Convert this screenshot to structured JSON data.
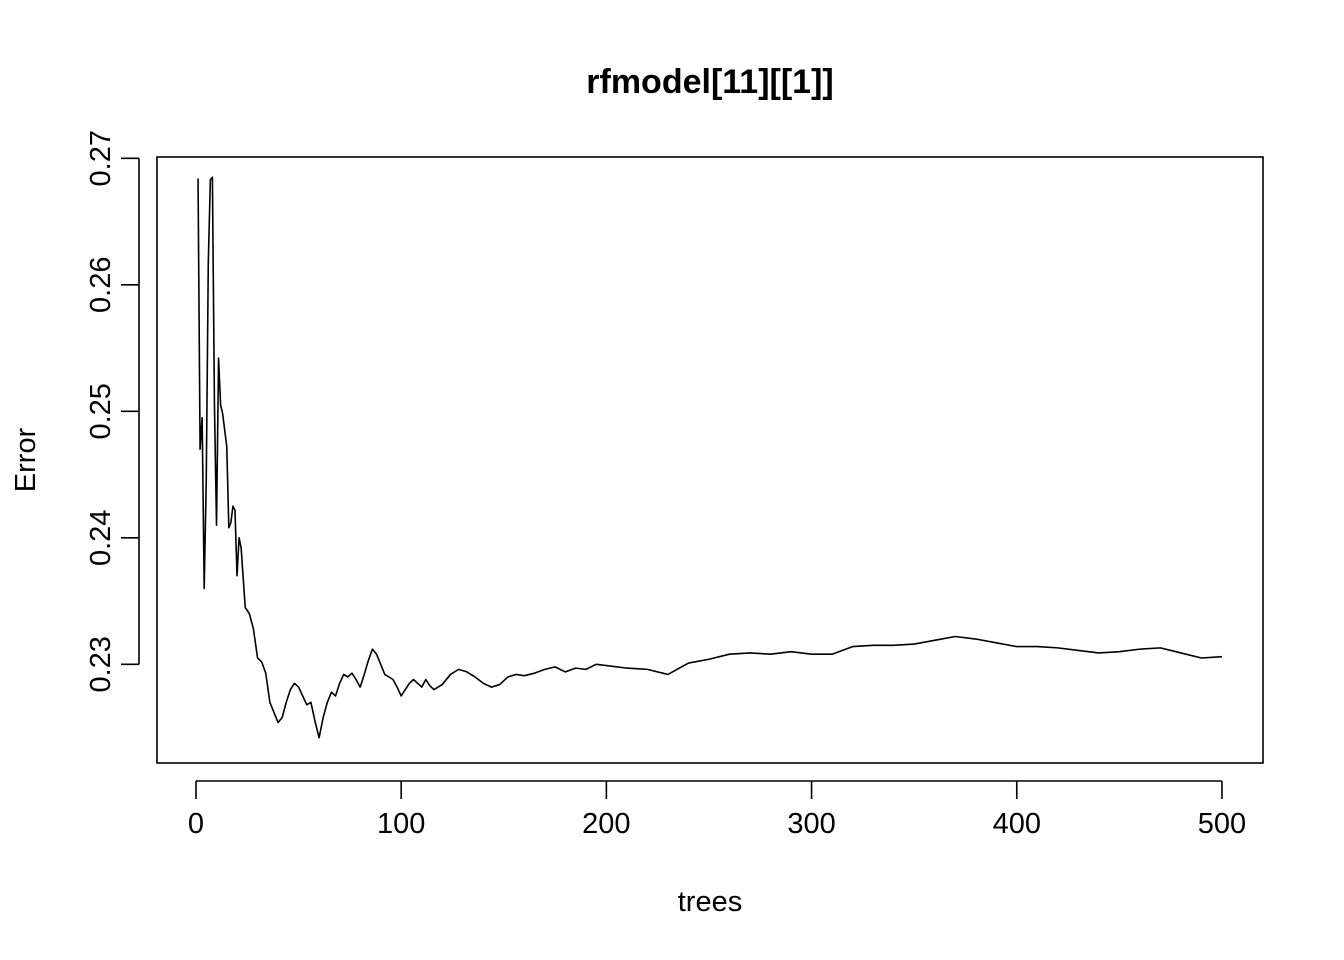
{
  "chart_data": {
    "type": "line",
    "title": "rfmodel[11][[1]]",
    "xlabel": "trees",
    "ylabel": "Error",
    "xlim": [
      -19,
      520
    ],
    "ylim": [
      0.2222,
      0.2701
    ],
    "x_ticks": [
      0,
      100,
      200,
      300,
      400,
      500
    ],
    "x_tick_labels": [
      "0",
      "100",
      "200",
      "300",
      "400",
      "500"
    ],
    "y_ticks": [
      0.23,
      0.24,
      0.25,
      0.26,
      0.27
    ],
    "y_tick_labels": [
      "0.23",
      "0.24",
      "0.25",
      "0.26",
      "0.27"
    ],
    "grid": false,
    "legend": "none",
    "line_color": "#000000",
    "series": [
      {
        "x": [
          1,
          2,
          3,
          4,
          5,
          6,
          7,
          8,
          9,
          10,
          11,
          12,
          13,
          14,
          15,
          16,
          17,
          18,
          19,
          20,
          21,
          22,
          24,
          26,
          28,
          30,
          32,
          34,
          36,
          38,
          40,
          42,
          44,
          46,
          48,
          50,
          52,
          54,
          56,
          58,
          60,
          62,
          64,
          66,
          68,
          70,
          72,
          74,
          76,
          78,
          80,
          82,
          84,
          86,
          88,
          90,
          92,
          94,
          96,
          98,
          100,
          102,
          104,
          106,
          108,
          110,
          112,
          114,
          116,
          118,
          120,
          124,
          128,
          132,
          136,
          140,
          144,
          148,
          152,
          156,
          160,
          165,
          170,
          175,
          180,
          185,
          190,
          195,
          200,
          210,
          220,
          230,
          240,
          250,
          260,
          270,
          280,
          290,
          300,
          310,
          320,
          330,
          340,
          350,
          360,
          370,
          380,
          390,
          400,
          410,
          420,
          430,
          440,
          450,
          460,
          470,
          480,
          490,
          500
        ],
        "y": [
          0.2684,
          0.247,
          0.2495,
          0.236,
          0.2445,
          0.2618,
          0.2683,
          0.2685,
          0.2505,
          0.241,
          0.2542,
          0.2505,
          0.2498,
          0.2485,
          0.2472,
          0.2408,
          0.2412,
          0.2425,
          0.2422,
          0.237,
          0.24,
          0.2392,
          0.2345,
          0.234,
          0.2328,
          0.2305,
          0.2302,
          0.2293,
          0.227,
          0.2262,
          0.2254,
          0.2258,
          0.227,
          0.228,
          0.2285,
          0.2282,
          0.2275,
          0.2268,
          0.227,
          0.2255,
          0.2242,
          0.2258,
          0.227,
          0.2278,
          0.2275,
          0.2285,
          0.2292,
          0.229,
          0.2293,
          0.2288,
          0.2282,
          0.2292,
          0.2303,
          0.2312,
          0.2308,
          0.23,
          0.2292,
          0.229,
          0.2288,
          0.2282,
          0.2275,
          0.228,
          0.2285,
          0.2288,
          0.2285,
          0.2282,
          0.2288,
          0.2283,
          0.228,
          0.2282,
          0.2284,
          0.2292,
          0.2296,
          0.2294,
          0.229,
          0.2285,
          0.2282,
          0.2284,
          0.229,
          0.2292,
          0.2291,
          0.2293,
          0.2296,
          0.2298,
          0.2294,
          0.2297,
          0.2296,
          0.23,
          0.2299,
          0.2297,
          0.2296,
          0.2292,
          0.2301,
          0.2304,
          0.2308,
          0.2309,
          0.2308,
          0.231,
          0.2308,
          0.2308,
          0.2314,
          0.2315,
          0.2315,
          0.2316,
          0.2319,
          0.2322,
          0.232,
          0.2317,
          0.2314,
          0.2314,
          0.2313,
          0.2311,
          0.2309,
          0.231,
          0.2312,
          0.2313,
          0.2309,
          0.2305,
          0.2306
        ]
      }
    ]
  }
}
